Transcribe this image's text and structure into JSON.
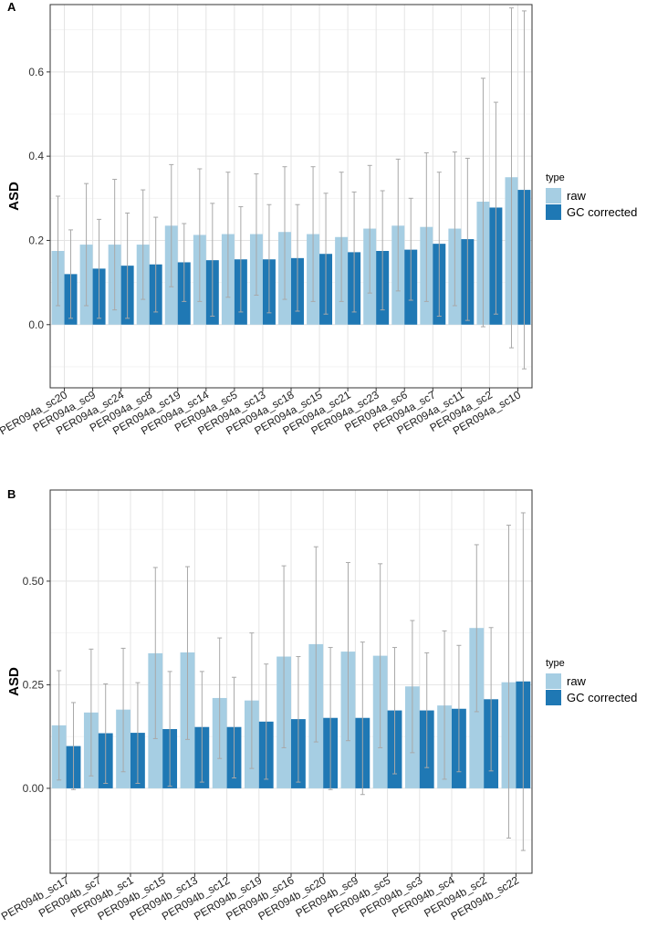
{
  "colors": {
    "raw": "#a6cee3",
    "gc": "#1f78b4",
    "errorbar": "#a8a8a8",
    "grid_major": "#e4e4e4",
    "grid_minor": "#f2f2f2",
    "border": "#333333"
  },
  "chart_data": [
    {
      "type": "bar",
      "panel": "A",
      "ylabel": "ASD",
      "ylim": [
        -0.15,
        0.76
      ],
      "yticks": [
        0.0,
        0.2,
        0.4,
        0.6
      ],
      "ytick_labels": [
        "0.0",
        "0.2",
        "0.4",
        "0.6"
      ],
      "legend": {
        "title": "type",
        "entries": [
          "raw",
          "GC corrected"
        ]
      },
      "categories": [
        "PER094a_sc20",
        "PER094a_sc9",
        "PER094a_sc24",
        "PER094a_sc8",
        "PER094a_sc19",
        "PER094a_sc14",
        "PER094a_sc5",
        "PER094a_sc13",
        "PER094a_sc18",
        "PER094a_sc15",
        "PER094a_sc21",
        "PER094a_sc23",
        "PER094a_sc6",
        "PER094a_sc7",
        "PER094a_sc11",
        "PER094a_sc2",
        "PER094a_sc10"
      ],
      "series": [
        {
          "name": "raw",
          "values": [
            0.175,
            0.19,
            0.19,
            0.19,
            0.235,
            0.213,
            0.215,
            0.215,
            0.22,
            0.215,
            0.208,
            0.228,
            0.235,
            0.232,
            0.228,
            0.292,
            0.35
          ],
          "err_low": [
            0.045,
            0.045,
            0.035,
            0.06,
            0.09,
            0.055,
            0.065,
            0.07,
            0.06,
            0.055,
            0.055,
            0.075,
            0.08,
            0.055,
            0.045,
            -0.005,
            -0.055
          ],
          "err_high": [
            0.305,
            0.335,
            0.345,
            0.32,
            0.38,
            0.37,
            0.362,
            0.358,
            0.375,
            0.375,
            0.362,
            0.378,
            0.393,
            0.408,
            0.41,
            0.585,
            0.752
          ]
        },
        {
          "name": "GC corrected",
          "values": [
            0.12,
            0.133,
            0.14,
            0.143,
            0.148,
            0.153,
            0.155,
            0.155,
            0.158,
            0.168,
            0.172,
            0.175,
            0.178,
            0.192,
            0.203,
            0.278,
            0.32
          ],
          "err_low": [
            0.015,
            0.015,
            0.015,
            0.03,
            0.055,
            0.02,
            0.03,
            0.028,
            0.032,
            0.025,
            0.03,
            0.035,
            0.058,
            0.02,
            0.01,
            0.025,
            -0.105
          ],
          "err_high": [
            0.225,
            0.25,
            0.265,
            0.255,
            0.24,
            0.288,
            0.28,
            0.285,
            0.285,
            0.312,
            0.315,
            0.318,
            0.3,
            0.362,
            0.395,
            0.528,
            0.745
          ]
        }
      ]
    },
    {
      "type": "bar",
      "panel": "B",
      "ylabel": "ASD",
      "ylim": [
        -0.205,
        0.72
      ],
      "yticks": [
        0.0,
        0.25,
        0.5
      ],
      "ytick_labels": [
        "0.00",
        "0.25",
        "0.50"
      ],
      "legend": {
        "title": "type",
        "entries": [
          "raw",
          "GC corrected"
        ]
      },
      "categories": [
        "PER094b_sc17",
        "PER094b_sc7",
        "PER094b_sc1",
        "PER094b_sc15",
        "PER094b_sc13",
        "PER094b_sc12",
        "PER094b_sc19",
        "PER094b_sc16",
        "PER094b_sc20",
        "PER094b_sc9",
        "PER094b_sc5",
        "PER094b_sc3",
        "PER094b_sc4",
        "PER094b_sc2",
        "PER094b_sc22"
      ],
      "series": [
        {
          "name": "raw",
          "values": [
            0.152,
            0.183,
            0.19,
            0.326,
            0.328,
            0.218,
            0.212,
            0.318,
            0.348,
            0.33,
            0.32,
            0.246,
            0.2,
            0.387,
            0.256
          ],
          "err_low": [
            0.02,
            0.03,
            0.04,
            0.12,
            0.118,
            0.072,
            0.048,
            0.098,
            0.112,
            0.115,
            0.098,
            0.086,
            0.022,
            0.185,
            -0.12
          ],
          "err_high": [
            0.284,
            0.336,
            0.338,
            0.533,
            0.535,
            0.363,
            0.375,
            0.537,
            0.583,
            0.545,
            0.542,
            0.405,
            0.38,
            0.588,
            0.635
          ]
        },
        {
          "name": "GC corrected",
          "values": [
            0.102,
            0.133,
            0.134,
            0.143,
            0.148,
            0.148,
            0.161,
            0.167,
            0.17,
            0.17,
            0.188,
            0.188,
            0.192,
            0.215,
            0.258
          ],
          "err_low": [
            -0.003,
            0.012,
            0.012,
            0.005,
            0.015,
            0.025,
            0.022,
            0.015,
            -0.003,
            -0.015,
            0.035,
            0.05,
            0.04,
            0.042,
            -0.15
          ],
          "err_high": [
            0.207,
            0.252,
            0.255,
            0.282,
            0.282,
            0.268,
            0.3,
            0.318,
            0.34,
            0.353,
            0.34,
            0.327,
            0.345,
            0.388,
            0.665
          ]
        }
      ]
    }
  ]
}
